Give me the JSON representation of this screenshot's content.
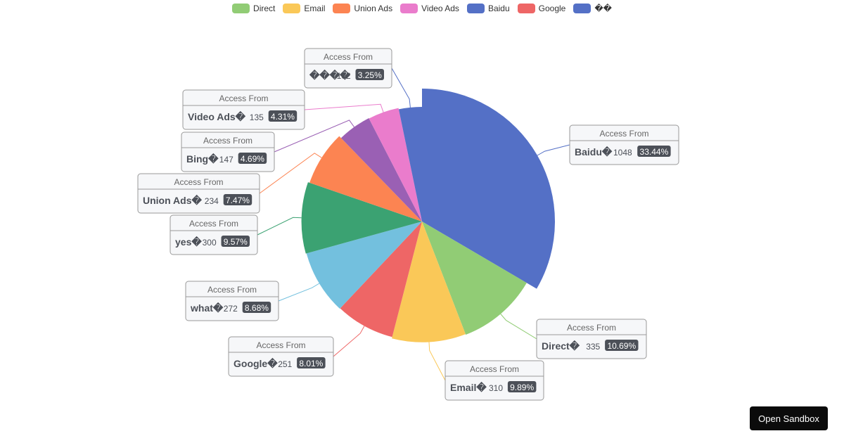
{
  "chart_data": {
    "type": "pie",
    "label_title": "Access From",
    "legend": {
      "placement": "top-center",
      "items": [
        {
          "name": "Direct",
          "color": "#91cc75"
        },
        {
          "name": "Email",
          "color": "#fac858"
        },
        {
          "name": "Union Ads",
          "color": "#fc8452"
        },
        {
          "name": "Video Ads",
          "color": "#ea7ccc"
        },
        {
          "name": "Baidu",
          "color": "#5470c6"
        },
        {
          "name": "Google",
          "color": "#ee6666"
        },
        {
          "name": "��",
          "color": "#5470c6"
        }
      ]
    },
    "slices": [
      {
        "name": "Baidu",
        "value": 1048,
        "percent": "33.44%",
        "color": "#5470c6"
      },
      {
        "name": "Direct",
        "value": 335,
        "percent": "10.69%",
        "color": "#91cc75"
      },
      {
        "name": "Email",
        "value": 310,
        "percent": "9.89%",
        "color": "#fac858"
      },
      {
        "name": "Google",
        "value": 251,
        "percent": "8.01%",
        "color": "#ee6666"
      },
      {
        "name": "what",
        "value": 272,
        "percent": "8.68%",
        "color": "#73c0de"
      },
      {
        "name": "yes",
        "value": 300,
        "percent": "9.57%",
        "color": "#3ba272"
      },
      {
        "name": "Union Ads",
        "value": 234,
        "percent": "7.47%",
        "color": "#fc8452"
      },
      {
        "name": "Bing",
        "value": 147,
        "percent": "4.69%",
        "color": "#9a60b4"
      },
      {
        "name": "Video Ads",
        "value": 135,
        "percent": "4.31%",
        "color": "#ea7ccc"
      },
      {
        "name": "���",
        "value": 102,
        "percent": "3.25%",
        "color": "#5470c6"
      }
    ]
  },
  "sandbox": {
    "label": "Open Sandbox"
  }
}
